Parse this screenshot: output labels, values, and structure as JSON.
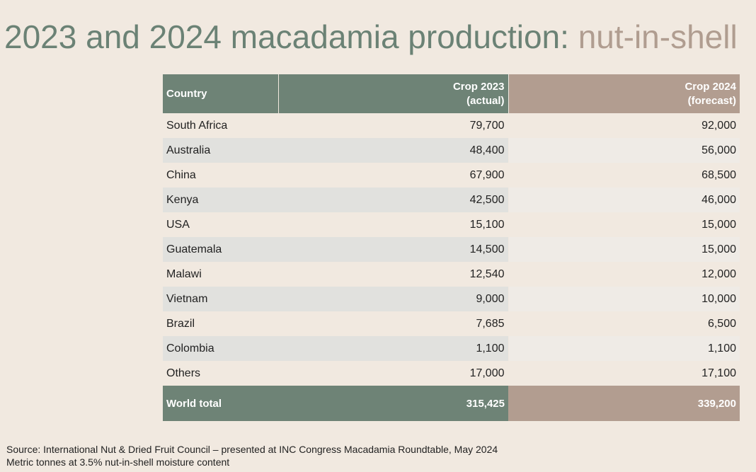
{
  "title": {
    "main": "2023 and 2024 macadamia production: ",
    "accent": "nut-in-shell"
  },
  "colors": {
    "background": "#f1e9e0",
    "green_header": "#6e8376",
    "tan_header": "#b29d90",
    "title_green": "#6b8275",
    "title_tan": "#b09d90"
  },
  "chart_data": {
    "type": "table",
    "columns": [
      "Country",
      "Crop 2023 (actual)",
      "Crop 2024 (forecast)"
    ],
    "header": {
      "country": "Country",
      "crop2023_line1": "Crop 2023",
      "crop2023_line2": "(actual)",
      "crop2024_line1": "Crop 2024",
      "crop2024_line2": "(forecast)"
    },
    "rows": [
      {
        "country": "South Africa",
        "crop2023": "79,700",
        "crop2024": "92,000"
      },
      {
        "country": "Australia",
        "crop2023": "48,400",
        "crop2024": "56,000"
      },
      {
        "country": "China",
        "crop2023": "67,900",
        "crop2024": "68,500"
      },
      {
        "country": "Kenya",
        "crop2023": "42,500",
        "crop2024": "46,000"
      },
      {
        "country": "USA",
        "crop2023": "15,100",
        "crop2024": "15,000"
      },
      {
        "country": "Guatemala",
        "crop2023": "14,500",
        "crop2024": "15,000"
      },
      {
        "country": "Malawi",
        "crop2023": "12,540",
        "crop2024": "12,000"
      },
      {
        "country": "Vietnam",
        "crop2023": "9,000",
        "crop2024": "10,000"
      },
      {
        "country": "Brazil",
        "crop2023": "7,685",
        "crop2024": "6,500"
      },
      {
        "country": "Colombia",
        "crop2023": "1,100",
        "crop2024": "1,100"
      },
      {
        "country": "Others",
        "crop2023": "17,000",
        "crop2024": "17,100"
      }
    ],
    "total": {
      "country": "World total",
      "crop2023": "315,425",
      "crop2024": "339,200"
    }
  },
  "footer": {
    "source": "Source: International Nut & Dried Fruit Council – presented at INC Congress Macadamia Roundtable, May 2024",
    "note": "Metric tonnes at 3.5% nut-in-shell moisture content"
  }
}
